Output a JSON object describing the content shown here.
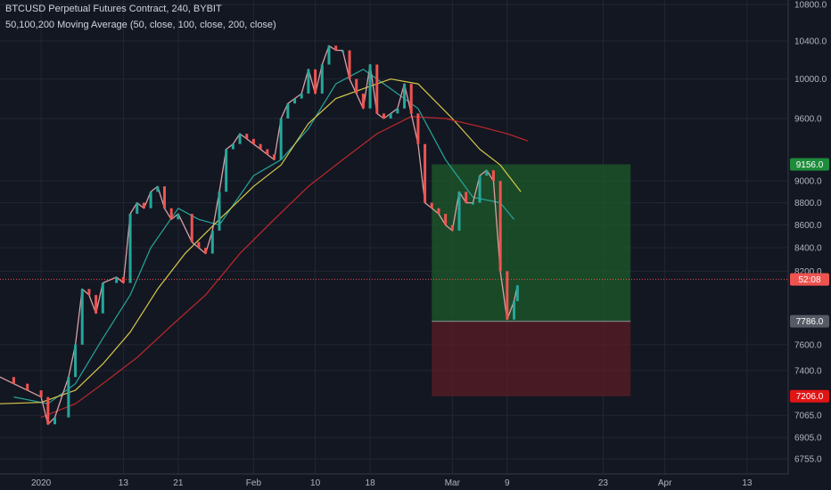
{
  "header": {
    "title": "BTCUSD Perpetual Futures Contract, 240, BYBIT",
    "indicator": "50,100,200 Moving Average (50, close, 100, close, 200, close)"
  },
  "colors": {
    "background": "#131722",
    "grid": "#232733",
    "up": "#26a69a",
    "down": "#ef5350",
    "ma50": "#26a69a",
    "ma100": "#d6c84a",
    "ma200": "#c0282b",
    "profit_zone": "#1e5b2b",
    "loss_zone": "#5b1e25",
    "current_price_line": "#ef5350"
  },
  "chart_data": {
    "type": "candlestick",
    "x": {
      "start": "2019-12-26",
      "end": "2020-04-19",
      "tick_labels": [
        {
          "date": "2020-01-01",
          "label": "2020"
        },
        {
          "date": "2020-01-13",
          "label": "13"
        },
        {
          "date": "2020-01-21",
          "label": "21"
        },
        {
          "date": "2020-02-01",
          "label": "Feb"
        },
        {
          "date": "2020-02-10",
          "label": "10"
        },
        {
          "date": "2020-02-18",
          "label": "18"
        },
        {
          "date": "2020-03-01",
          "label": "Mar"
        },
        {
          "date": "2020-03-09",
          "label": "9"
        },
        {
          "date": "2020-03-23",
          "label": "23"
        },
        {
          "date": "2020-04-01",
          "label": "Apr"
        },
        {
          "date": "2020-04-13",
          "label": "13"
        }
      ]
    },
    "y": {
      "scale": "log",
      "ylim": [
        6650,
        10850
      ],
      "tick_labels": [
        "10800.0",
        "10400.0",
        "10000.0",
        "9600.0",
        "9000.0",
        "8800.0",
        "8600.0",
        "8400.0",
        "8200.0",
        "7600.0",
        "7400.0",
        "7065.0",
        "6905.0",
        "6755.0"
      ]
    },
    "series": [
      {
        "name": "Price",
        "points": [
          [
            "2019-12-26",
            7350
          ],
          [
            "2019-12-28",
            7300
          ],
          [
            "2019-12-30",
            7250
          ],
          [
            "2020-01-01",
            7200
          ],
          [
            "2020-01-02",
            7000
          ],
          [
            "2020-01-03",
            7050
          ],
          [
            "2020-01-05",
            7350
          ],
          [
            "2020-01-06",
            7600
          ],
          [
            "2020-01-07",
            8050
          ],
          [
            "2020-01-08",
            8000
          ],
          [
            "2020-01-09",
            7850
          ],
          [
            "2020-01-10",
            8100
          ],
          [
            "2020-01-12",
            8150
          ],
          [
            "2020-01-13",
            8100
          ],
          [
            "2020-01-14",
            8700
          ],
          [
            "2020-01-15",
            8800
          ],
          [
            "2020-01-16",
            8750
          ],
          [
            "2020-01-17",
            8900
          ],
          [
            "2020-01-18",
            8950
          ],
          [
            "2020-01-19",
            8750
          ],
          [
            "2020-01-20",
            8650
          ],
          [
            "2020-01-21",
            8700
          ],
          [
            "2020-01-23",
            8450
          ],
          [
            "2020-01-24",
            8400
          ],
          [
            "2020-01-25",
            8350
          ],
          [
            "2020-01-26",
            8550
          ],
          [
            "2020-01-27",
            8900
          ],
          [
            "2020-01-28",
            9300
          ],
          [
            "2020-01-29",
            9350
          ],
          [
            "2020-01-30",
            9450
          ],
          [
            "2020-01-31",
            9400
          ],
          [
            "2020-02-01",
            9350
          ],
          [
            "2020-02-02",
            9300
          ],
          [
            "2020-02-03",
            9250
          ],
          [
            "2020-02-04",
            9200
          ],
          [
            "2020-02-05",
            9600
          ],
          [
            "2020-02-06",
            9750
          ],
          [
            "2020-02-07",
            9800
          ],
          [
            "2020-02-08",
            9850
          ],
          [
            "2020-02-09",
            10100
          ],
          [
            "2020-02-10",
            9850
          ],
          [
            "2020-02-11",
            10150
          ],
          [
            "2020-02-12",
            10350
          ],
          [
            "2020-02-13",
            10300
          ],
          [
            "2020-02-14",
            10300
          ],
          [
            "2020-02-15",
            10000
          ],
          [
            "2020-02-16",
            9850
          ],
          [
            "2020-02-17",
            9700
          ],
          [
            "2020-02-18",
            10150
          ],
          [
            "2020-02-19",
            9650
          ],
          [
            "2020-02-20",
            9600
          ],
          [
            "2020-02-21",
            9650
          ],
          [
            "2020-02-22",
            9700
          ],
          [
            "2020-02-23",
            9950
          ],
          [
            "2020-02-24",
            9650
          ],
          [
            "2020-02-25",
            9350
          ],
          [
            "2020-02-26",
            8800
          ],
          [
            "2020-02-27",
            8750
          ],
          [
            "2020-02-28",
            8700
          ],
          [
            "2020-02-29",
            8600
          ],
          [
            "2020-03-01",
            8550
          ],
          [
            "2020-03-02",
            8900
          ],
          [
            "2020-03-03",
            8800
          ],
          [
            "2020-03-04",
            8800
          ],
          [
            "2020-03-05",
            9050
          ],
          [
            "2020-03-06",
            9100
          ],
          [
            "2020-03-07",
            9000
          ],
          [
            "2020-03-08",
            8200
          ],
          [
            "2020-03-09",
            7800
          ],
          [
            "2020-03-10",
            7950
          ],
          [
            "2020-03-10T12:00",
            8080
          ]
        ]
      },
      {
        "name": "MA50",
        "points": [
          [
            "2019-12-28",
            7200
          ],
          [
            "2020-01-02",
            7150
          ],
          [
            "2020-01-06",
            7300
          ],
          [
            "2020-01-10",
            7650
          ],
          [
            "2020-01-14",
            8000
          ],
          [
            "2020-01-17",
            8400
          ],
          [
            "2020-01-21",
            8750
          ],
          [
            "2020-01-24",
            8650
          ],
          [
            "2020-01-27",
            8600
          ],
          [
            "2020-02-01",
            9050
          ],
          [
            "2020-02-05",
            9200
          ],
          [
            "2020-02-09",
            9500
          ],
          [
            "2020-02-13",
            9950
          ],
          [
            "2020-02-17",
            10100
          ],
          [
            "2020-02-21",
            9900
          ],
          [
            "2020-02-25",
            9700
          ],
          [
            "2020-02-29",
            9200
          ],
          [
            "2020-03-04",
            8850
          ],
          [
            "2020-03-08",
            8800
          ],
          [
            "2020-03-10",
            8650
          ]
        ]
      },
      {
        "name": "MA100",
        "points": [
          [
            "2019-12-26",
            7150
          ],
          [
            "2020-01-01",
            7160
          ],
          [
            "2020-01-06",
            7250
          ],
          [
            "2020-01-10",
            7450
          ],
          [
            "2020-01-14",
            7700
          ],
          [
            "2020-01-18",
            8050
          ],
          [
            "2020-01-22",
            8350
          ],
          [
            "2020-01-27",
            8650
          ],
          [
            "2020-02-01",
            8950
          ],
          [
            "2020-02-05",
            9150
          ],
          [
            "2020-02-09",
            9550
          ],
          [
            "2020-02-13",
            9800
          ],
          [
            "2020-02-17",
            9900
          ],
          [
            "2020-02-21",
            10000
          ],
          [
            "2020-02-25",
            9950
          ],
          [
            "2020-03-01",
            9600
          ],
          [
            "2020-03-05",
            9300
          ],
          [
            "2020-03-08",
            9150
          ],
          [
            "2020-03-11",
            8900
          ]
        ]
      },
      {
        "name": "MA200",
        "points": [
          [
            "2020-01-01",
            7050
          ],
          [
            "2020-01-06",
            7150
          ],
          [
            "2020-01-10",
            7300
          ],
          [
            "2020-01-15",
            7500
          ],
          [
            "2020-01-20",
            7750
          ],
          [
            "2020-01-25",
            8000
          ],
          [
            "2020-01-30",
            8350
          ],
          [
            "2020-02-04",
            8650
          ],
          [
            "2020-02-09",
            8950
          ],
          [
            "2020-02-14",
            9200
          ],
          [
            "2020-02-19",
            9450
          ],
          [
            "2020-02-24",
            9620
          ],
          [
            "2020-02-29",
            9600
          ],
          [
            "2020-03-05",
            9520
          ],
          [
            "2020-03-09",
            9450
          ],
          [
            "2020-03-12",
            9380
          ]
        ]
      }
    ],
    "position": {
      "start": "2020-02-27",
      "end": "2020-03-27",
      "entry": 7786.0,
      "target": 9156.0,
      "stop": 7206.0
    },
    "current_price": 8130,
    "price_labels": {
      "target": "9156.0",
      "entry": "7786.0",
      "current": "52:08",
      "stop": "7206.0"
    }
  }
}
